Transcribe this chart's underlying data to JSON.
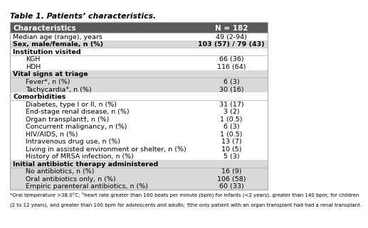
{
  "title": "Table 1. Patients’ characteristics.",
  "header": [
    "Characteristics",
    "N = 182"
  ],
  "rows": [
    {
      "label": "Median age (range), years",
      "value": "49 (2-94)",
      "indent": 0,
      "bold": false,
      "shaded": false,
      "section": false
    },
    {
      "label": "Sex, male/female, n (%)",
      "value": "103 (57) / 79 (43)",
      "indent": 0,
      "bold": true,
      "shaded": true,
      "section": false
    },
    {
      "label": "Institution visited",
      "value": "",
      "indent": 0,
      "bold": false,
      "shaded": false,
      "section": true
    },
    {
      "label": "KGH",
      "value": "66 (36)",
      "indent": 1,
      "bold": false,
      "shaded": false,
      "section": false
    },
    {
      "label": "HDH",
      "value": "116 (64)",
      "indent": 1,
      "bold": false,
      "shaded": false,
      "section": false
    },
    {
      "label": "Vital signs at triage",
      "value": "",
      "indent": 0,
      "bold": false,
      "shaded": true,
      "section": true
    },
    {
      "label": "Fever*, n (%)",
      "value": "6 (3)",
      "indent": 1,
      "bold": false,
      "shaded": true,
      "section": false
    },
    {
      "label": "Tachycardia°, n (%)",
      "value": "30 (16)",
      "indent": 1,
      "bold": false,
      "shaded": true,
      "section": false
    },
    {
      "label": "Comorbidities",
      "value": "",
      "indent": 0,
      "bold": false,
      "shaded": false,
      "section": true
    },
    {
      "label": "Diabetes, type I or II, n (%)",
      "value": "31 (17)",
      "indent": 1,
      "bold": false,
      "shaded": false,
      "section": false
    },
    {
      "label": "End-stage renal disease, n (%)",
      "value": "3 (2)",
      "indent": 1,
      "bold": false,
      "shaded": false,
      "section": false
    },
    {
      "label": "Organ transplant†, n (%)",
      "value": "1 (0.5)",
      "indent": 1,
      "bold": false,
      "shaded": false,
      "section": false
    },
    {
      "label": "Concurrent malignancy, n (%)",
      "value": "6 (3)",
      "indent": 1,
      "bold": false,
      "shaded": false,
      "section": false
    },
    {
      "label": "HIV/AIDS, n (%)",
      "value": "1 (0.5)",
      "indent": 1,
      "bold": false,
      "shaded": false,
      "section": false
    },
    {
      "label": "Intravenous drug use, n (%)",
      "value": "13 (7)",
      "indent": 1,
      "bold": false,
      "shaded": false,
      "section": false
    },
    {
      "label": "Living in assisted environment or shelter, n (%)",
      "value": "10 (5)",
      "indent": 1,
      "bold": false,
      "shaded": false,
      "section": false
    },
    {
      "label": "History of MRSA infection, n (%)",
      "value": "5 (3)",
      "indent": 1,
      "bold": false,
      "shaded": false,
      "section": false
    },
    {
      "label": "Initial antibiotic therapy administered",
      "value": "",
      "indent": 0,
      "bold": false,
      "shaded": true,
      "section": true
    },
    {
      "label": "No antibiotics, n (%)",
      "value": "16 (9)",
      "indent": 1,
      "bold": false,
      "shaded": true,
      "section": false
    },
    {
      "label": "Oral antibiotics only, n (%)",
      "value": "106 (58)",
      "indent": 1,
      "bold": false,
      "shaded": true,
      "section": false
    },
    {
      "label": "Empiric parenteral antibiotics, n (%)",
      "value": "60 (33)",
      "indent": 1,
      "bold": false,
      "shaded": true,
      "section": false
    }
  ],
  "footnote_line1": "*Oral temperature >38.0°C; °heart rate greater than 160 beats per minute (bpm) for infants (<2 years), greater than 140 bpm; for children",
  "footnote_line2": "(2 to 12 years), and greater than 100 bpm for adolescents and adults; †the only patient with an organ transplant had had a renal transplant.",
  "header_bg": "#5a5a5a",
  "header_fg": "#ffffff",
  "shaded_bg": "#d9d9d9",
  "white_bg": "#ffffff",
  "border_color": "#aaaaaa",
  "title_color": "#000000",
  "col_split": 0.72
}
